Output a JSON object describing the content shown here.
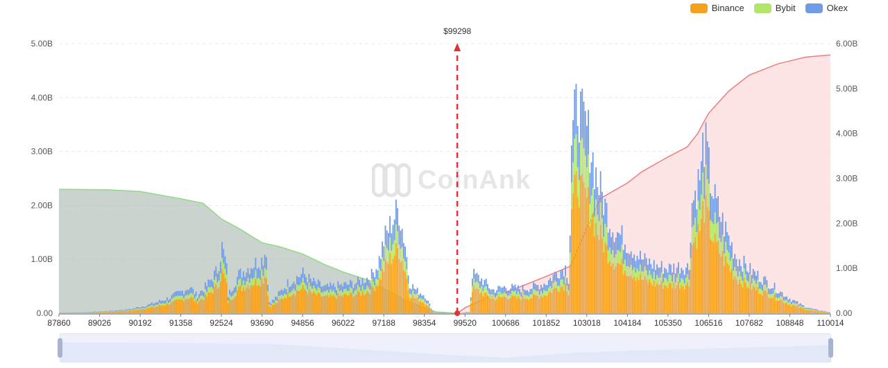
{
  "legend": {
    "items": [
      {
        "label": "Binance",
        "color": "#f5a11f"
      },
      {
        "label": "Bybit",
        "color": "#b3e46a"
      },
      {
        "label": "Okex",
        "color": "#6f9be7"
      }
    ]
  },
  "watermark": {
    "text": "CoinAnk"
  },
  "current_price_label": "$99298",
  "chart_data": {
    "type": "bar",
    "x_tick_labels": [
      "87860",
      "89026",
      "90192",
      "91358",
      "92524",
      "93690",
      "94856",
      "96022",
      "97188",
      "98354",
      "99520",
      "100686",
      "101852",
      "103018",
      "104184",
      "105350",
      "106516",
      "107682",
      "108848",
      "110014"
    ],
    "left_axis_ticks": [
      "0.00",
      "1.00B",
      "2.00B",
      "3.00B",
      "4.00B",
      "5.00B"
    ],
    "right_axis_ticks": [
      "0.00",
      "1.00B",
      "2.00B",
      "3.00B",
      "4.00B",
      "5.00B",
      "6.00B"
    ],
    "xlim": [
      87860,
      110014
    ],
    "ylim_left": [
      0,
      5.0
    ],
    "ylim_right": [
      0,
      6.0
    ],
    "current_price": 99298,
    "stacked_series": [
      {
        "name": "Binance",
        "color": "#f5a11f"
      },
      {
        "name": "Bybit",
        "color": "#b3e46a"
      },
      {
        "name": "Okex",
        "color": "#6f9be7"
      }
    ],
    "stack_profile": [
      [
        87860,
        0.01
      ],
      [
        88600,
        0.02
      ],
      [
        89200,
        0.04
      ],
      [
        89900,
        0.08
      ],
      [
        90500,
        0.18
      ],
      [
        91000,
        0.3
      ],
      [
        91358,
        0.42
      ],
      [
        91600,
        0.52
      ],
      [
        91800,
        0.35
      ],
      [
        92100,
        0.55
      ],
      [
        92400,
        0.85
      ],
      [
        92524,
        1.3
      ],
      [
        92650,
        0.95
      ],
      [
        92700,
        0.35
      ],
      [
        93000,
        0.75
      ],
      [
        93400,
        0.95
      ],
      [
        93690,
        1.05
      ],
      [
        93800,
        1.28
      ],
      [
        93860,
        0.22
      ],
      [
        94000,
        0.25
      ],
      [
        94400,
        0.58
      ],
      [
        94856,
        0.78
      ],
      [
        95100,
        0.62
      ],
      [
        95500,
        0.5
      ],
      [
        96022,
        0.55
      ],
      [
        96400,
        0.6
      ],
      [
        96800,
        0.72
      ],
      [
        97000,
        0.95
      ],
      [
        97188,
        1.45
      ],
      [
        97400,
        1.78
      ],
      [
        97600,
        2.05
      ],
      [
        97700,
        1.65
      ],
      [
        97800,
        1.3
      ],
      [
        97900,
        0.6
      ],
      [
        98100,
        0.45
      ],
      [
        98354,
        0.35
      ],
      [
        98500,
        0.15
      ],
      [
        98600,
        0.02
      ],
      [
        99298,
        0
      ],
      [
        99650,
        0.03
      ],
      [
        99700,
        0.78
      ],
      [
        100000,
        0.65
      ],
      [
        100300,
        0.45
      ],
      [
        100686,
        0.52
      ],
      [
        101000,
        0.48
      ],
      [
        101400,
        0.5
      ],
      [
        101852,
        0.6
      ],
      [
        102100,
        0.78
      ],
      [
        102400,
        0.9
      ],
      [
        102500,
        0.6
      ],
      [
        102550,
        3.3
      ],
      [
        102750,
        4.2
      ],
      [
        102850,
        3.75
      ],
      [
        103018,
        3.55
      ],
      [
        103300,
        2.6
      ],
      [
        103700,
        1.72
      ],
      [
        104184,
        1.35
      ],
      [
        104600,
        1.05
      ],
      [
        105000,
        0.92
      ],
      [
        105350,
        0.88
      ],
      [
        105700,
        0.92
      ],
      [
        105950,
        0.9
      ],
      [
        106000,
        2.1
      ],
      [
        106200,
        2.55
      ],
      [
        106300,
        2.8
      ],
      [
        106350,
        3.45
      ],
      [
        106500,
        2.9
      ],
      [
        106516,
        2.7
      ],
      [
        106700,
        2.15
      ],
      [
        107000,
        1.6
      ],
      [
        107300,
        1.1
      ],
      [
        107682,
        0.85
      ],
      [
        108100,
        0.65
      ],
      [
        108500,
        0.45
      ],
      [
        108848,
        0.28
      ],
      [
        109200,
        0.15
      ],
      [
        109500,
        0.08
      ],
      [
        110014,
        0.02
      ]
    ],
    "cumulative_short": [
      [
        87860,
        2.76
      ],
      [
        89200,
        2.75
      ],
      [
        90192,
        2.71
      ],
      [
        91358,
        2.55
      ],
      [
        92000,
        2.45
      ],
      [
        92524,
        2.1
      ],
      [
        93000,
        1.9
      ],
      [
        93690,
        1.57
      ],
      [
        94200,
        1.48
      ],
      [
        94856,
        1.32
      ],
      [
        95500,
        1.08
      ],
      [
        96022,
        0.92
      ],
      [
        96800,
        0.72
      ],
      [
        97188,
        0.55
      ],
      [
        97800,
        0.3
      ],
      [
        98354,
        0.12
      ],
      [
        98700,
        0.03
      ],
      [
        99298,
        0
      ]
    ],
    "cumulative_long": [
      [
        99298,
        0
      ],
      [
        99520,
        0.12
      ],
      [
        100200,
        0.36
      ],
      [
        100686,
        0.46
      ],
      [
        101852,
        0.82
      ],
      [
        102550,
        1.05
      ],
      [
        103018,
        1.9
      ],
      [
        103400,
        2.55
      ],
      [
        104184,
        2.9
      ],
      [
        104600,
        3.15
      ],
      [
        105350,
        3.48
      ],
      [
        105900,
        3.7
      ],
      [
        106200,
        4.0
      ],
      [
        106516,
        4.45
      ],
      [
        107100,
        4.95
      ],
      [
        107682,
        5.3
      ],
      [
        108500,
        5.55
      ],
      [
        109300,
        5.7
      ],
      [
        110014,
        5.75
      ]
    ]
  }
}
